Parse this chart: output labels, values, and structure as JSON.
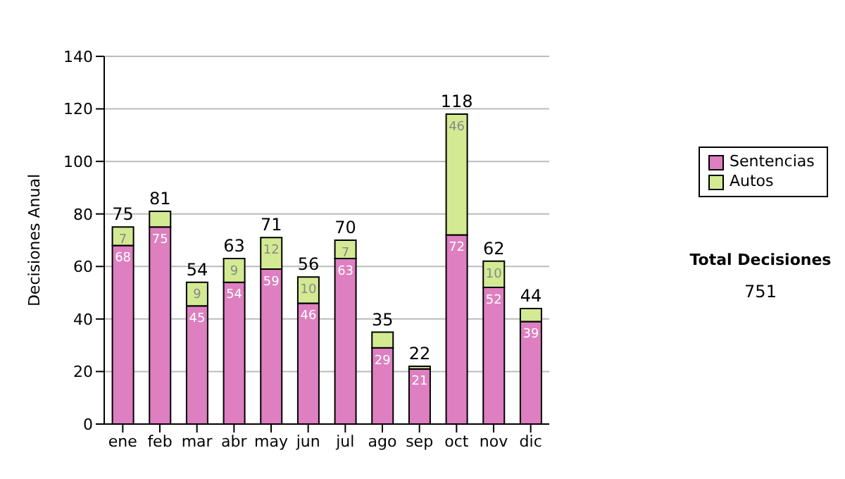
{
  "chart_data": {
    "type": "bar",
    "ylabel": "Decisiones Anual",
    "categories": [
      "ene",
      "feb",
      "mar",
      "abr",
      "may",
      "jun",
      "jul",
      "ago",
      "sep",
      "oct",
      "nov",
      "dic"
    ],
    "series": [
      {
        "name": "Sentencias",
        "color": "#dd7fc0",
        "values": [
          68,
          75,
          45,
          54,
          59,
          46,
          63,
          29,
          21,
          72,
          52,
          39
        ],
        "value_labels": [
          "68",
          "75",
          "45",
          "54",
          "59",
          "46",
          "63",
          "29",
          "21",
          "72",
          "52",
          "39"
        ]
      },
      {
        "name": "Autos",
        "color": "#d3ea93",
        "values": [
          7,
          6,
          9,
          9,
          12,
          10,
          7,
          6,
          1,
          46,
          10,
          5
        ],
        "value_labels": [
          "7",
          null,
          "9",
          "9",
          "12",
          "10",
          "7",
          null,
          null,
          "46",
          "10",
          null
        ]
      }
    ],
    "stacked": true,
    "totals": [
      "75",
      "81",
      "54",
      "63",
      "71",
      "56",
      "70",
      "35",
      "22",
      "118",
      "62",
      "44"
    ],
    "ylim": [
      0,
      140
    ],
    "yticks": [
      0,
      20,
      40,
      60,
      80,
      100,
      120,
      140
    ],
    "grid": "y",
    "legend": "right",
    "annotations": [
      "Total Decisiones",
      "751"
    ]
  }
}
